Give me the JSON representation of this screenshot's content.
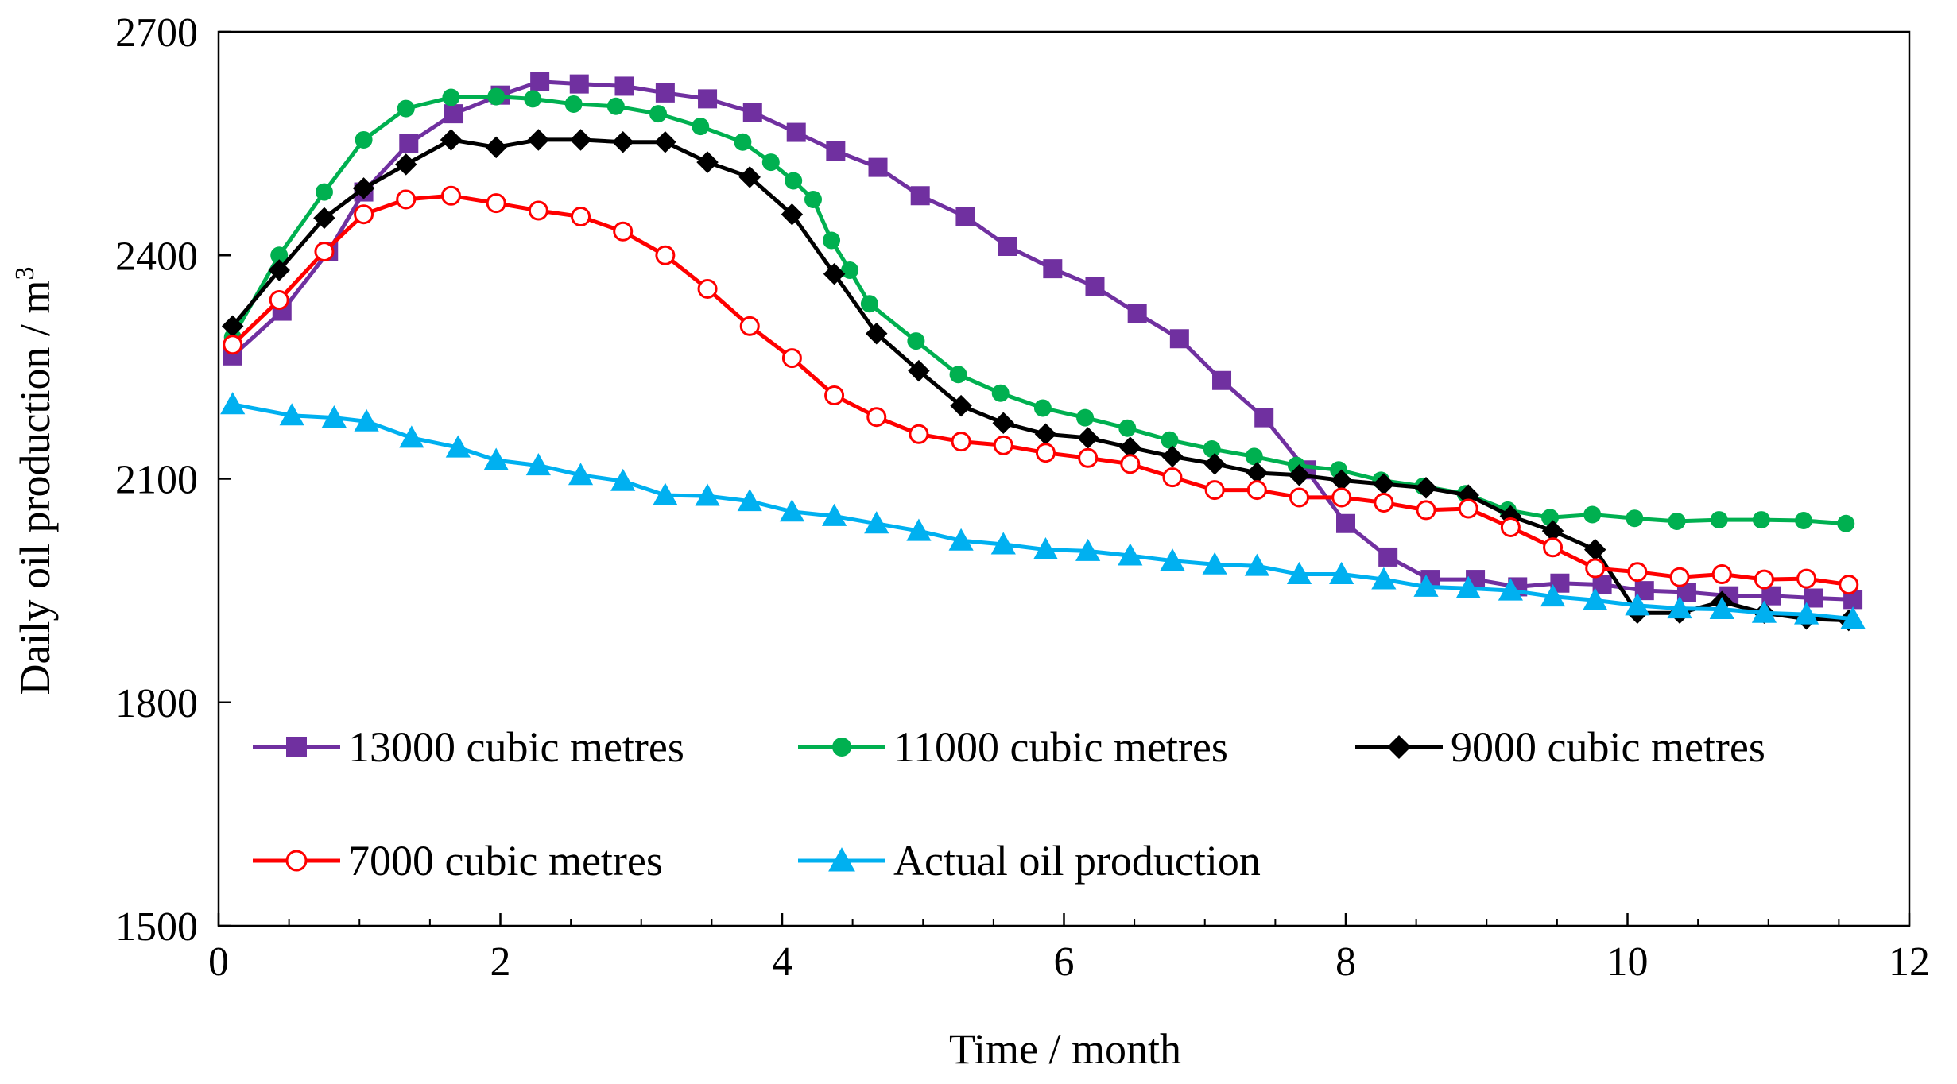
{
  "chart_data": {
    "type": "line",
    "title": "",
    "xlabel": "Time / month",
    "ylabel": "Daily oil production / m",
    "ylabel_superscript": "3",
    "xlim": [
      0,
      12
    ],
    "ylim": [
      1500,
      2700
    ],
    "xticks": [
      "0",
      "2",
      "4",
      "6",
      "8",
      "10",
      "12"
    ],
    "yticks": [
      "1500",
      "1800",
      "2100",
      "2400",
      "2700"
    ],
    "grid": false,
    "legend_position": "bottom-left",
    "series": [
      {
        "name": "13000 cubic metres",
        "color": "#7030A0",
        "marker": "square",
        "filled": true,
        "x": [
          0.1,
          0.45,
          0.78,
          1.03,
          1.35,
          1.67,
          2.0,
          2.28,
          2.56,
          2.88,
          3.17,
          3.47,
          3.79,
          4.1,
          4.38,
          4.68,
          4.98,
          5.3,
          5.6,
          5.92,
          6.22,
          6.52,
          6.82,
          7.12,
          7.42,
          7.72,
          8.0,
          8.3,
          8.6,
          8.92,
          9.22,
          9.52,
          9.82,
          10.12,
          10.42,
          10.72,
          11.02,
          11.32,
          11.6
        ],
        "y": [
          2265,
          2325,
          2405,
          2485,
          2550,
          2590,
          2615,
          2633,
          2630,
          2627,
          2618,
          2610,
          2592,
          2565,
          2540,
          2518,
          2480,
          2452,
          2412,
          2382,
          2358,
          2322,
          2288,
          2232,
          2182,
          2112,
          2040,
          1995,
          1965,
          1965,
          1955,
          1960,
          1958,
          1950,
          1948,
          1943,
          1943,
          1940,
          1938
        ]
      },
      {
        "name": "11000 cubic metres",
        "color": "#00B050",
        "marker": "circle",
        "filled": true,
        "x": [
          0.1,
          0.43,
          0.75,
          1.03,
          1.33,
          1.65,
          1.97,
          2.23,
          2.52,
          2.82,
          3.12,
          3.42,
          3.72,
          3.92,
          4.08,
          4.22,
          4.35,
          4.48,
          4.62,
          4.95,
          5.25,
          5.55,
          5.85,
          6.15,
          6.45,
          6.75,
          7.05,
          7.35,
          7.65,
          7.95,
          8.25,
          8.55,
          8.85,
          9.15,
          9.45,
          9.75,
          10.05,
          10.35,
          10.65,
          10.95,
          11.25,
          11.55
        ],
        "y": [
          2290,
          2400,
          2485,
          2555,
          2597,
          2612,
          2613,
          2610,
          2603,
          2600,
          2590,
          2573,
          2552,
          2525,
          2500,
          2475,
          2420,
          2380,
          2335,
          2285,
          2240,
          2215,
          2195,
          2182,
          2168,
          2152,
          2140,
          2130,
          2118,
          2112,
          2098,
          2090,
          2080,
          2058,
          2048,
          2052,
          2047,
          2043,
          2045,
          2045,
          2044,
          2040
        ]
      },
      {
        "name": "9000 cubic metres",
        "color": "#000000",
        "marker": "diamond",
        "filled": true,
        "x": [
          0.1,
          0.43,
          0.75,
          1.03,
          1.33,
          1.65,
          1.97,
          2.27,
          2.57,
          2.87,
          3.17,
          3.47,
          3.77,
          4.07,
          4.37,
          4.67,
          4.97,
          5.27,
          5.57,
          5.87,
          6.17,
          6.47,
          6.77,
          7.07,
          7.37,
          7.67,
          7.97,
          8.27,
          8.57,
          8.87,
          9.17,
          9.47,
          9.77,
          10.07,
          10.37,
          10.67,
          10.97,
          11.27,
          11.57
        ],
        "y": [
          2305,
          2380,
          2450,
          2490,
          2522,
          2555,
          2545,
          2555,
          2555,
          2552,
          2552,
          2525,
          2505,
          2455,
          2375,
          2295,
          2245,
          2198,
          2175,
          2160,
          2155,
          2142,
          2130,
          2120,
          2108,
          2105,
          2098,
          2093,
          2088,
          2078,
          2050,
          2030,
          2005,
          1920,
          1920,
          1935,
          1920,
          1912,
          1910
        ]
      },
      {
        "name": "7000 cubic metres",
        "color": "#FF0000",
        "marker": "circle",
        "filled": false,
        "x": [
          0.1,
          0.43,
          0.75,
          1.03,
          1.33,
          1.65,
          1.97,
          2.27,
          2.57,
          2.87,
          3.17,
          3.47,
          3.77,
          4.07,
          4.37,
          4.67,
          4.97,
          5.27,
          5.57,
          5.87,
          6.17,
          6.47,
          6.77,
          7.07,
          7.37,
          7.67,
          7.97,
          8.27,
          8.57,
          8.87,
          9.17,
          9.47,
          9.77,
          10.07,
          10.37,
          10.67,
          10.97,
          11.27,
          11.57
        ],
        "y": [
          2280,
          2340,
          2405,
          2455,
          2475,
          2480,
          2470,
          2460,
          2452,
          2432,
          2400,
          2355,
          2305,
          2262,
          2212,
          2183,
          2160,
          2150,
          2145,
          2135,
          2128,
          2120,
          2102,
          2085,
          2085,
          2075,
          2075,
          2068,
          2058,
          2060,
          2035,
          2008,
          1980,
          1975,
          1968,
          1972,
          1965,
          1966,
          1958
        ]
      },
      {
        "name": "Actual oil production",
        "color": "#00B0F0",
        "marker": "triangle",
        "filled": true,
        "x": [
          0.1,
          0.52,
          0.82,
          1.05,
          1.37,
          1.7,
          1.97,
          2.27,
          2.57,
          2.87,
          3.17,
          3.47,
          3.77,
          4.07,
          4.37,
          4.67,
          4.97,
          5.27,
          5.57,
          5.87,
          6.17,
          6.47,
          6.77,
          7.07,
          7.37,
          7.67,
          7.97,
          8.27,
          8.57,
          8.87,
          9.17,
          9.47,
          9.77,
          10.07,
          10.37,
          10.67,
          10.97,
          11.27,
          11.6
        ],
        "y": [
          2200,
          2185,
          2182,
          2177,
          2155,
          2142,
          2125,
          2118,
          2105,
          2097,
          2078,
          2077,
          2070,
          2056,
          2050,
          2040,
          2030,
          2017,
          2012,
          2005,
          2003,
          1997,
          1990,
          1985,
          1983,
          1972,
          1972,
          1965,
          1955,
          1953,
          1950,
          1942,
          1937,
          1930,
          1926,
          1925,
          1920,
          1918,
          1912
        ]
      }
    ]
  }
}
